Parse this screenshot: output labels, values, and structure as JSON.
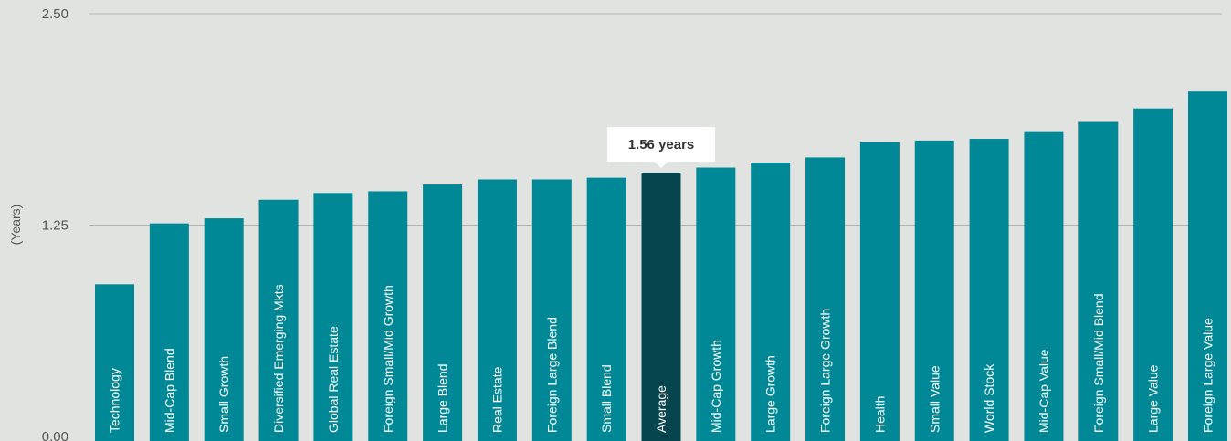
{
  "chart_data": {
    "type": "bar",
    "title": "",
    "xlabel": "",
    "ylabel": "(Years)",
    "ylim": [
      0,
      2.5
    ],
    "y_ticks": [
      "0.00",
      "1.25",
      "2.50"
    ],
    "grid": true,
    "categories": [
      "Technology",
      "Mid-Cap Blend",
      "Small Growth",
      "Diversified Emerging Mkts",
      "Global Real Estate",
      "Foreign Small/Mid Growth",
      "Large Blend",
      "Real Estate",
      "Foreign Large Blend",
      "Small Blend",
      "Average",
      "Mid-Cap Growth",
      "Large Growth",
      "Foreign Large Growth",
      "Health",
      "Small Value",
      "World Stock",
      "Mid-Cap Value",
      "Foreign Small/Mid Blend",
      "Large Value",
      "Foreign Large Value"
    ],
    "values": [
      0.9,
      1.26,
      1.29,
      1.4,
      1.44,
      1.45,
      1.49,
      1.52,
      1.52,
      1.53,
      1.56,
      1.59,
      1.62,
      1.65,
      1.74,
      1.75,
      1.76,
      1.8,
      1.86,
      1.94,
      2.04
    ],
    "highlight_category": "Average",
    "callout": "1.56 years",
    "colors": {
      "bar": "#008896",
      "highlight": "#06444e",
      "grid": "#b3b5b3",
      "background": "#e1e3e1"
    }
  }
}
